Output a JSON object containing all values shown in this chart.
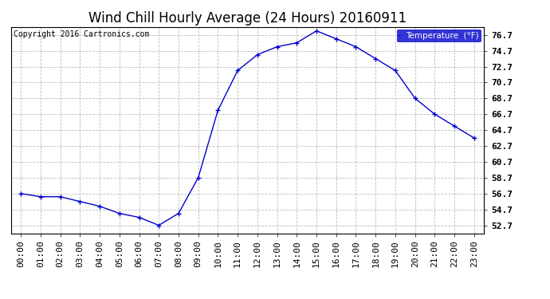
{
  "title": "Wind Chill Hourly Average (24 Hours) 20160911",
  "copyright": "Copyright 2016 Cartronics.com",
  "legend_label": "Temperature  (°F)",
  "hours": [
    "00:00",
    "01:00",
    "02:00",
    "03:00",
    "04:00",
    "05:00",
    "06:00",
    "07:00",
    "08:00",
    "09:00",
    "10:00",
    "11:00",
    "12:00",
    "13:00",
    "14:00",
    "15:00",
    "16:00",
    "17:00",
    "18:00",
    "19:00",
    "20:00",
    "21:00",
    "22:00",
    "23:00"
  ],
  "values": [
    56.7,
    56.3,
    56.3,
    55.7,
    55.1,
    54.2,
    53.7,
    52.7,
    54.2,
    58.7,
    67.2,
    72.2,
    74.2,
    75.2,
    75.7,
    77.2,
    76.2,
    75.2,
    73.7,
    72.2,
    68.7,
    66.7,
    65.2,
    63.7
  ],
  "ylim_min": 51.7,
  "ylim_max": 77.7,
  "yticks": [
    52.7,
    54.7,
    56.7,
    58.7,
    60.7,
    62.7,
    64.7,
    66.7,
    68.7,
    70.7,
    72.7,
    74.7,
    76.7
  ],
  "line_color": "#0000cc",
  "marker_color": "#000066",
  "background_color": "#ffffff",
  "grid_color": "#bbbbbb",
  "title_fontsize": 12,
  "copyright_fontsize": 7,
  "axis_fontsize": 8,
  "tick_fontsize": 8,
  "legend_bg": "#0000cc",
  "legend_text_color": "#ffffff"
}
